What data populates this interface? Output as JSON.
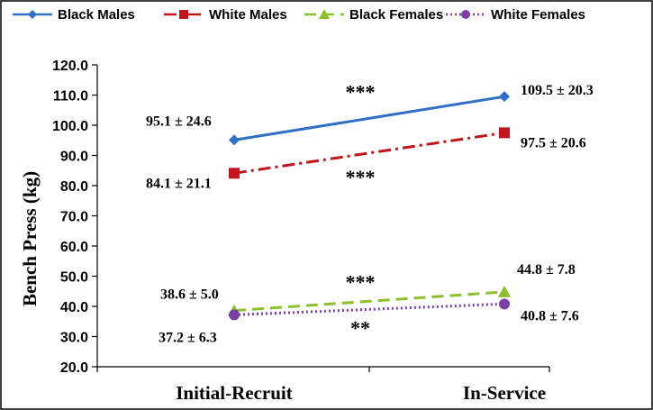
{
  "chart_data": {
    "type": "line",
    "title": "",
    "xlabel": "",
    "ylabel": "Bench Press (kg)",
    "ylim": [
      20,
      120
    ],
    "ytick_step": 10,
    "ytick_labels": [
      "20.0",
      "30.0",
      "40.0",
      "50.0",
      "60.0",
      "70.0",
      "80.0",
      "90.0",
      "100.0",
      "110.0",
      "120.0"
    ],
    "categories": [
      "Initial-Recruit",
      "In-Service"
    ],
    "legend_position": "top",
    "series": [
      {
        "name": "Black Males",
        "values": [
          95.1,
          109.5
        ],
        "color": "#2E6FC7",
        "marker": "diamond",
        "dash": "solid",
        "labels": [
          "95.1  ± 24.6",
          "109.5 ± 20.3"
        ]
      },
      {
        "name": "White Males",
        "values": [
          84.1,
          97.5
        ],
        "color": "#C0161B",
        "marker": "square",
        "dash": "dashdot",
        "labels": [
          "84.1 ± 21.1",
          "97.5 ± 20.6"
        ]
      },
      {
        "name": "Black Females",
        "values": [
          38.6,
          44.8
        ],
        "color": "#8DBF2E",
        "marker": "triangle",
        "dash": "dashed",
        "labels": [
          "38.6 ± 5.0",
          "44.8 ± 7.8"
        ]
      },
      {
        "name": "White Females",
        "values": [
          37.2,
          40.8
        ],
        "color": "#7B3FA6",
        "marker": "circle",
        "dash": "dotted",
        "labels": [
          "37.2 ± 6.3",
          "40.8 ± 7.6"
        ]
      }
    ],
    "significance": [
      {
        "text": "***",
        "series": "Black Males"
      },
      {
        "text": "***",
        "series": "White Males"
      },
      {
        "text": "***",
        "series": "Black Females"
      },
      {
        "text": "**",
        "series": "White Females"
      }
    ]
  }
}
